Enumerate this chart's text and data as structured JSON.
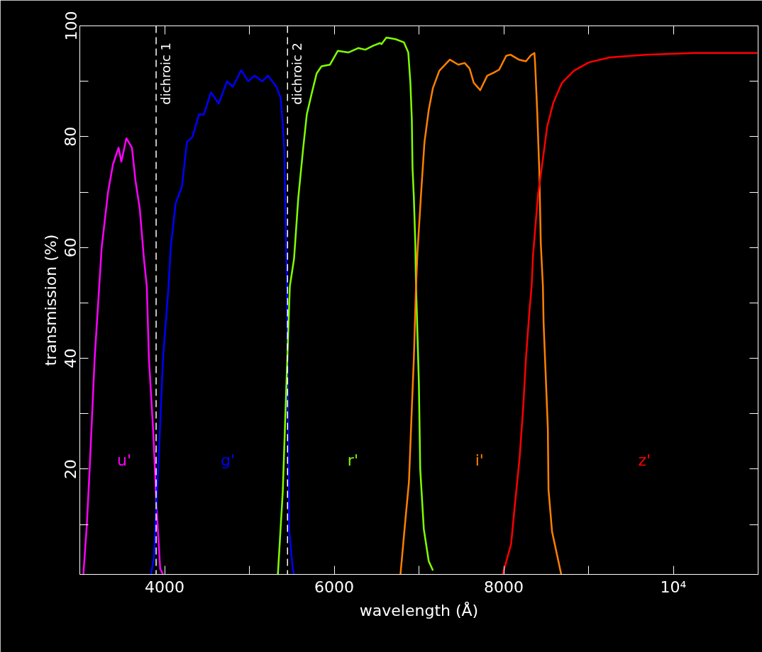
{
  "chart_data": {
    "type": "line",
    "xlabel": "wavelength (Å)",
    "ylabel": "transmission (%)",
    "xlim": [
      3000,
      11000
    ],
    "ylim": [
      1,
      100
    ],
    "xticks": [
      {
        "value": 4000,
        "label": "4000"
      },
      {
        "value": 5000,
        "label": null
      },
      {
        "value": 6000,
        "label": "6000"
      },
      {
        "value": 7000,
        "label": null
      },
      {
        "value": 8000,
        "label": "8000"
      },
      {
        "value": 9000,
        "label": null
      },
      {
        "value": 10000,
        "label": "10⁴"
      }
    ],
    "yticks": [
      {
        "value": 10,
        "label": null
      },
      20,
      {
        "value": 30,
        "label": null
      },
      40,
      {
        "value": 50,
        "label": null
      },
      60,
      {
        "value": 70,
        "label": null
      },
      80,
      {
        "value": 90,
        "label": null
      },
      100
    ],
    "grid": false,
    "legend": false,
    "line_style": "solid",
    "marker": "none",
    "series": [
      {
        "name": "u'",
        "color": "#ff00ff",
        "x": [
          3042,
          3083,
          3116,
          3175,
          3258,
          3333,
          3391,
          3457,
          3490,
          3549,
          3615,
          3657,
          3707,
          3756,
          3790,
          3815,
          3865,
          3906,
          3948,
          3981
        ],
        "values": [
          1,
          10,
          20,
          40,
          60,
          70,
          75,
          78,
          75.5,
          79.7,
          78,
          72,
          67,
          58,
          53,
          40,
          27,
          13,
          2,
          1
        ]
      },
      {
        "name": "g'",
        "color": "#0000ff",
        "x": [
          3840,
          3873,
          3931,
          3981,
          4047,
          4072,
          4131,
          4205,
          4263,
          4330,
          4405,
          4463,
          4546,
          4638,
          4737,
          4804,
          4904,
          4987,
          5061,
          5153,
          5219,
          5319,
          5369,
          5394,
          5411,
          5427,
          5444,
          5452,
          5469,
          5511,
          5527
        ],
        "values": [
          1,
          4,
          22,
          40,
          53,
          60,
          68,
          71,
          79,
          80,
          84,
          84,
          88,
          86,
          90,
          89,
          92,
          90,
          91,
          90,
          91,
          89,
          87,
          82,
          78,
          65,
          53,
          35,
          9,
          2,
          1
        ]
      },
      {
        "name": "r'",
        "color": "#80ff00",
        "x": [
          5336,
          5394,
          5436,
          5477,
          5527,
          5577,
          5635,
          5677,
          5735,
          5793,
          5851,
          5951,
          6043,
          6167,
          6284,
          6367,
          6458,
          6541,
          6558,
          6616,
          6724,
          6824,
          6874,
          6899,
          6916,
          6924,
          6940,
          6957,
          6965,
          6974,
          6999,
          7015,
          7057,
          7115,
          7165
        ],
        "values": [
          1,
          16,
          35,
          53,
          58,
          69,
          78,
          84,
          87.8,
          91.4,
          92.7,
          93,
          95.5,
          95.2,
          96,
          95.7,
          96.4,
          96.9,
          96.7,
          97.9,
          97.6,
          97,
          95.2,
          89.7,
          83,
          74.4,
          69,
          60.7,
          53,
          48.7,
          35.5,
          20,
          9.2,
          3.4,
          1.7
        ]
      },
      {
        "name": "i'",
        "color": "#ff8000",
        "x": [
          6782,
          6841,
          6882,
          6916,
          6940,
          6965,
          6982,
          7024,
          7065,
          7115,
          7165,
          7240,
          7364,
          7464,
          7539,
          7597,
          7647,
          7722,
          7805,
          7888,
          7946,
          8029,
          8079,
          8179,
          8262,
          8320,
          8362,
          8370,
          8395,
          8420,
          8437,
          8462,
          8470,
          8520,
          8528,
          8570,
          8678
        ],
        "values": [
          1,
          11,
          17.7,
          31,
          40,
          53,
          59,
          69.5,
          79,
          84.8,
          88.8,
          91.9,
          93.9,
          93,
          93.3,
          92.3,
          89.7,
          88.4,
          91,
          91.6,
          92.1,
          94.6,
          94.8,
          93.9,
          93.6,
          94.7,
          95.1,
          93.2,
          84.4,
          73.5,
          60.7,
          53,
          46.4,
          27.4,
          16.3,
          8.7,
          1
        ]
      },
      {
        "name": "z'",
        "color": "#ff0000",
        "x": [
          7988,
          8087,
          8129,
          8187,
          8229,
          8262,
          8304,
          8329,
          8345,
          8404,
          8462,
          8512,
          8586,
          8686,
          8827,
          9002,
          9251,
          9675,
          10249,
          10990
        ],
        "values": [
          1,
          6.5,
          13.2,
          22,
          31,
          40,
          48.7,
          53,
          58.5,
          69.5,
          76,
          81.8,
          86.2,
          89.7,
          91.9,
          93.4,
          94.3,
          94.8,
          95.1,
          95.1
        ]
      }
    ],
    "ref_lines": [
      {
        "axis": "x",
        "value": 3900,
        "label": "dichroic 1",
        "color": "#ffffff",
        "line_style": "dashed"
      },
      {
        "axis": "x",
        "value": 5450,
        "label": "dichroic 2",
        "color": "#ffffff",
        "line_style": "dashed"
      }
    ]
  }
}
